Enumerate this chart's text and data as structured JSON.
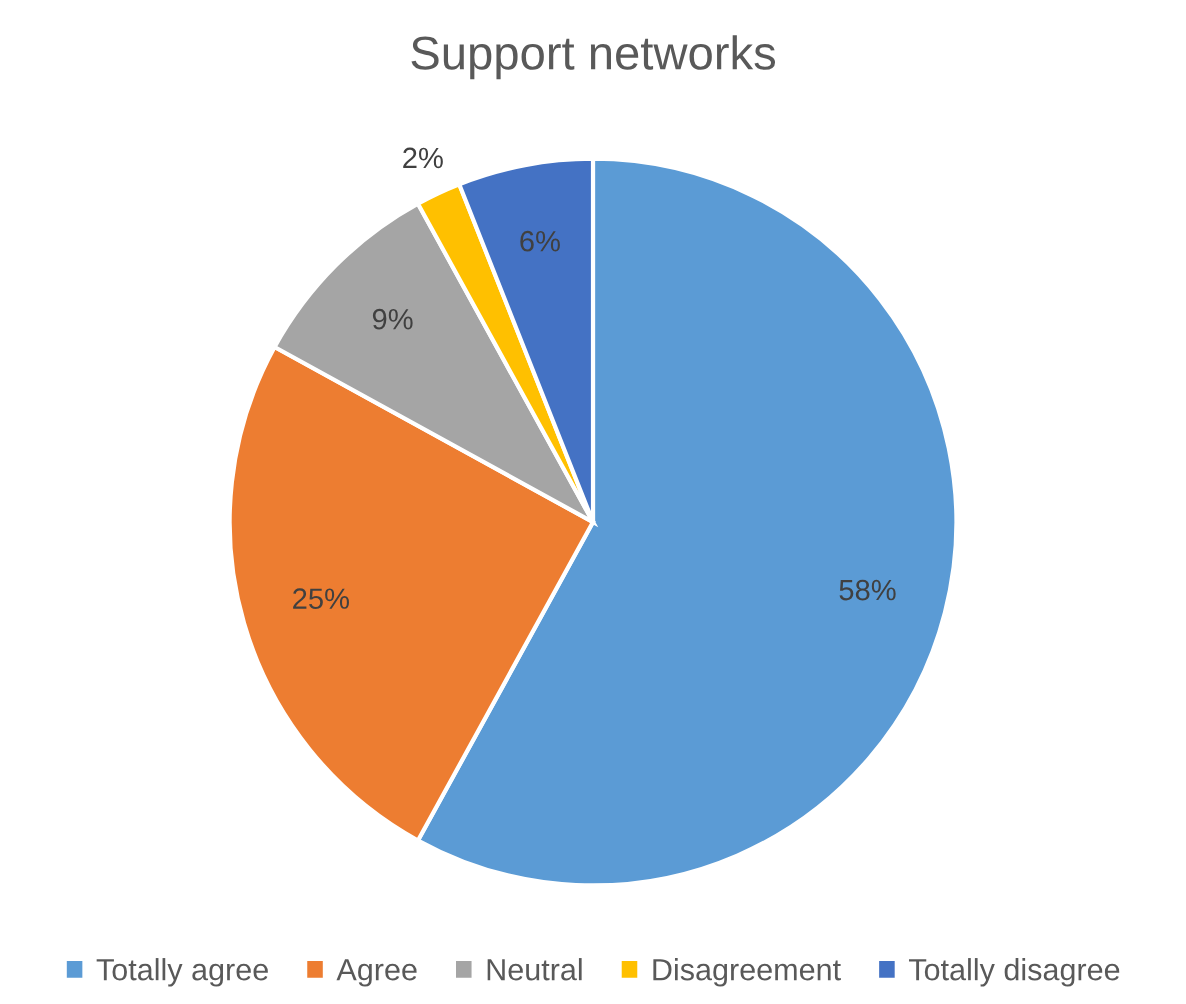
{
  "chart_data": {
    "type": "pie",
    "title": "Support networks",
    "categories": [
      "Totally agree",
      "Agree",
      "Neutral",
      "Disagreement",
      "Totally disagree"
    ],
    "values": [
      58,
      25,
      9,
      2,
      6
    ],
    "colors": [
      "#5b9bd5",
      "#ed7d31",
      "#a5a5a5",
      "#ffc000",
      "#4472c4"
    ],
    "value_labels": [
      "58%",
      "25%",
      "9%",
      "2%",
      "6%"
    ],
    "legend": "bottom"
  }
}
